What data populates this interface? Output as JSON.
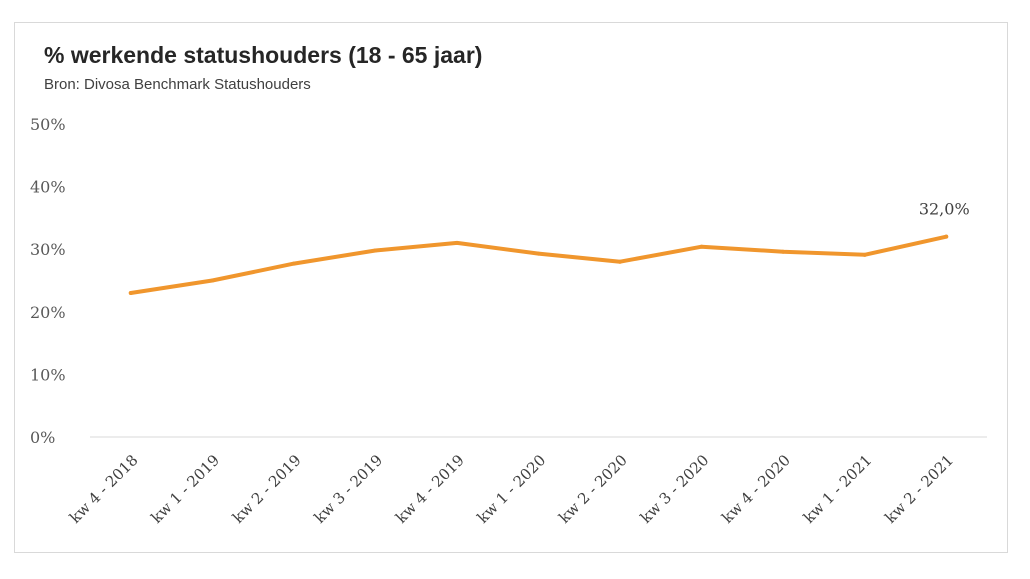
{
  "chart_data": {
    "type": "line",
    "title": "% werkende statushouders (18 - 65 jaar)",
    "subtitle": "Bron: Divosa Benchmark Statushouders",
    "xlabel": "",
    "ylabel": "",
    "categories": [
      "kw 4 - 2018",
      "kw 1 - 2019",
      "kw 2 - 2019",
      "kw 3 - 2019",
      "kw 4 - 2019",
      "kw 1 - 2020",
      "kw 2 - 2020",
      "kw 3 - 2020",
      "kw 4 - 2020",
      "kw 1 - 2021",
      "kw 2 - 2021"
    ],
    "series": [
      {
        "name": "% werkende statushouders",
        "values": [
          23.0,
          25.0,
          27.7,
          29.8,
          31.0,
          29.3,
          28.0,
          30.4,
          29.6,
          29.1,
          32.0
        ],
        "color": "#f0962d"
      }
    ],
    "ylim": [
      0,
      50
    ],
    "yticks": [
      0,
      10,
      20,
      30,
      40,
      50
    ],
    "ytick_labels": [
      "0%",
      "10%",
      "20%",
      "30%",
      "40%",
      "50%"
    ],
    "grid": false,
    "legend": "none",
    "annotations": [
      {
        "category_index": 10,
        "text": "32,0%"
      }
    ]
  }
}
